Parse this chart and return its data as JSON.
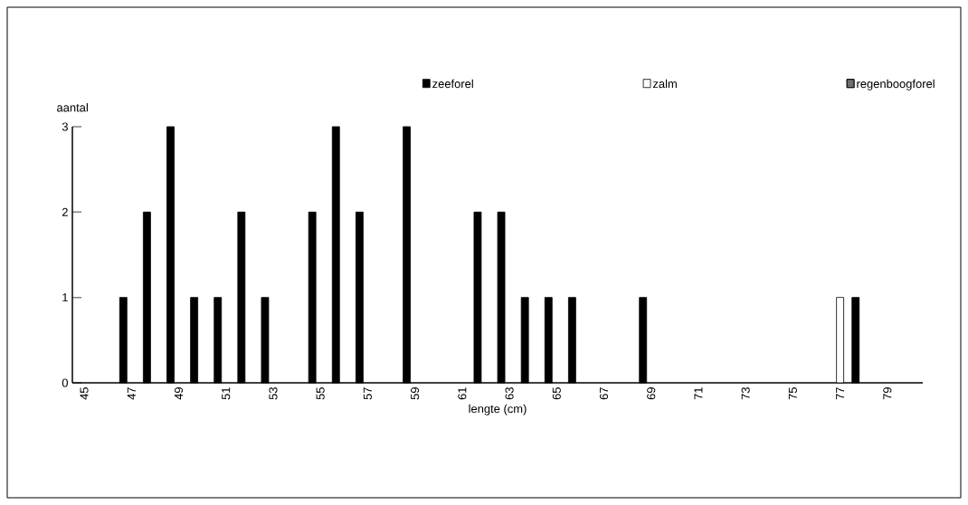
{
  "chart_data": {
    "type": "bar",
    "xlabel": "lengte (cm)",
    "ylabel": "aantal",
    "categories": [
      "45",
      null,
      "47",
      null,
      "49",
      null,
      "51",
      null,
      "53",
      null,
      "55",
      null,
      "57",
      null,
      "59",
      null,
      "61",
      null,
      "63",
      null,
      "65",
      null,
      "67",
      null,
      "69",
      null,
      "71",
      null,
      "73",
      null,
      "75",
      null,
      "77",
      null,
      "79",
      null
    ],
    "series": [
      {
        "name": "zeeforel",
        "color": "#000000",
        "values": [
          0,
          0,
          1,
          2,
          3,
          1,
          1,
          2,
          1,
          0,
          2,
          3,
          2,
          0,
          3,
          0,
          0,
          2,
          2,
          1,
          1,
          1,
          0,
          0,
          1,
          0,
          0,
          0,
          0,
          0,
          0,
          0,
          0,
          1,
          0,
          0
        ]
      },
      {
        "name": "zalm",
        "color": "#ffffff",
        "values": [
          0,
          0,
          0,
          0,
          0,
          0,
          0,
          0,
          0,
          0,
          0,
          0,
          0,
          0,
          0,
          0,
          0,
          0,
          0,
          0,
          0,
          0,
          0,
          0,
          0,
          0,
          0,
          0,
          0,
          0,
          0,
          0,
          1,
          0,
          0,
          0
        ]
      },
      {
        "name": "regenboogforel",
        "color": "#808080",
        "values": [
          0,
          0,
          0,
          0,
          0,
          0,
          0,
          0,
          0,
          0,
          0,
          0,
          0,
          0,
          0,
          0,
          0,
          0,
          0,
          0,
          0,
          0,
          0,
          0,
          0,
          0,
          0,
          0,
          0,
          0,
          0,
          0,
          0,
          0,
          0,
          0
        ]
      }
    ],
    "ylim": [
      0,
      3
    ],
    "yticks": [
      0,
      1,
      2,
      3
    ],
    "legend": "top right"
  }
}
